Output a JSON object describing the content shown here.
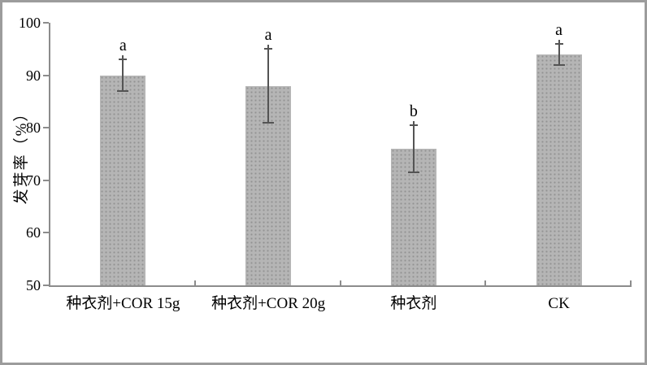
{
  "chart_data": {
    "type": "bar",
    "title": "",
    "xlabel": "",
    "ylabel": "发芽率（%）",
    "ylim": [
      50,
      100
    ],
    "yticks": [
      100,
      90,
      80,
      70,
      60,
      50
    ],
    "categories": [
      "种衣剂+COR 15g",
      "种衣剂+COR 20g",
      "种衣剂",
      "CK"
    ],
    "values": [
      90,
      88,
      76,
      94
    ],
    "error_plus": [
      3,
      7,
      4.5,
      2
    ],
    "error_minus": [
      3,
      7,
      4.5,
      2
    ],
    "sig_letters": [
      "a",
      "a",
      "b",
      "a"
    ],
    "legend": null,
    "grid": "off",
    "colors": {
      "bar_fill": "#b5b5b5",
      "bar_dots": "#929292",
      "error_bar": "#545454",
      "axis": "#8c8c8c",
      "text": "#000000",
      "frame_border": "#9c9c9c"
    }
  }
}
